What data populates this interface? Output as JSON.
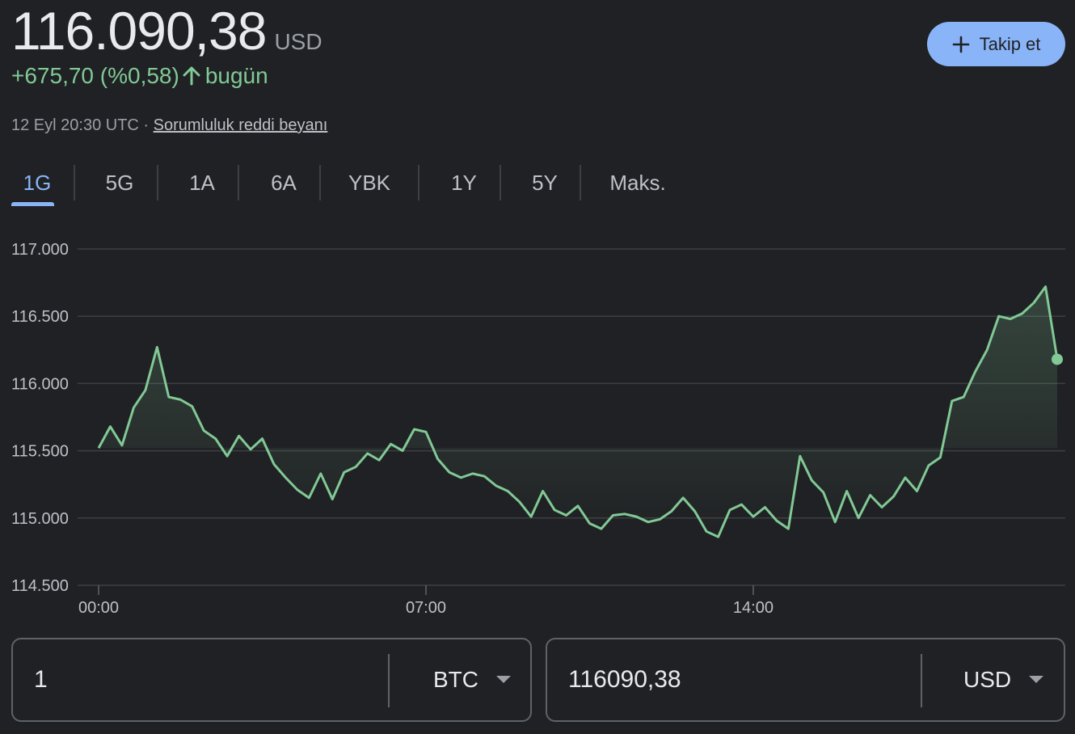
{
  "quote": {
    "price": "116.090,38",
    "currency": "USD",
    "change": "+675,70 (%0,58)",
    "change_period": "bugün",
    "timestamp": "12 Eyl 20:30 UTC · ",
    "disclaimer": "Sorumluluk reddi beyanı"
  },
  "follow_button": {
    "label": "Takip et",
    "icon": "plus-icon"
  },
  "tabs": [
    {
      "label": "1G",
      "active": true
    },
    {
      "label": "5G",
      "active": false
    },
    {
      "label": "1A",
      "active": false
    },
    {
      "label": "6A",
      "active": false
    },
    {
      "label": "YBK",
      "active": false
    },
    {
      "label": "1Y",
      "active": false
    },
    {
      "label": "5Y",
      "active": false
    },
    {
      "label": "Maks.",
      "active": false
    }
  ],
  "colors": {
    "accent": "#8ab4f8",
    "positive": "#81c995",
    "background": "#202124",
    "gridline": "#3c4043"
  },
  "chart_data": {
    "type": "line",
    "series": [
      {
        "x": [
          "00:00",
          "00:15",
          "00:30",
          "00:45",
          "01:00",
          "01:15",
          "01:30",
          "01:45",
          "02:00",
          "02:15",
          "02:30",
          "02:45",
          "03:00",
          "03:15",
          "03:30",
          "03:45",
          "04:00",
          "04:15",
          "04:30",
          "04:45",
          "05:00",
          "05:15",
          "05:30",
          "05:45",
          "06:00",
          "06:15",
          "06:30",
          "06:45",
          "07:00",
          "07:15",
          "07:30",
          "07:45",
          "08:00",
          "08:15",
          "08:30",
          "08:45",
          "09:00",
          "09:15",
          "09:30",
          "09:45",
          "10:00",
          "10:15",
          "10:30",
          "10:45",
          "11:00",
          "11:15",
          "11:30",
          "11:45",
          "12:00",
          "12:15",
          "12:30",
          "12:45",
          "13:00",
          "13:15",
          "13:30",
          "13:45",
          "14:00",
          "14:15",
          "14:30",
          "14:45",
          "15:00",
          "15:15",
          "15:30",
          "15:45",
          "16:00",
          "16:15",
          "16:30",
          "16:45",
          "17:00",
          "17:15",
          "17:30",
          "17:45",
          "18:00",
          "18:15",
          "18:30",
          "18:45",
          "19:00",
          "19:15",
          "19:30",
          "19:45",
          "20:00",
          "20:15",
          "20:30"
        ],
        "values": [
          115520,
          115680,
          115540,
          115820,
          115950,
          116270,
          115900,
          115880,
          115830,
          115650,
          115590,
          115460,
          115610,
          115510,
          115590,
          115400,
          115300,
          115210,
          115150,
          115330,
          115140,
          115340,
          115380,
          115480,
          115430,
          115550,
          115500,
          115660,
          115640,
          115440,
          115340,
          115300,
          115330,
          115310,
          115240,
          115200,
          115120,
          115010,
          115200,
          115060,
          115020,
          115090,
          114960,
          114920,
          115020,
          115030,
          115010,
          114970,
          114990,
          115050,
          115150,
          115050,
          114900,
          114860,
          115060,
          115100,
          115010,
          115080,
          114980,
          114920,
          115460,
          115280,
          115190,
          114970,
          115200,
          115000,
          115170,
          115080,
          115160,
          115300,
          115200,
          115390,
          115450,
          115870,
          115900,
          116090,
          116250,
          116500,
          116480,
          116520,
          116600,
          116720,
          116180
        ]
      }
    ],
    "y_ticks": [
      "117.000",
      "116.500",
      "116.000",
      "115.500",
      "115.000",
      "114.500"
    ],
    "x_ticks": [
      "00:00",
      "07:00",
      "14:00"
    ],
    "ylim": [
      114500,
      117000
    ],
    "xlim_hours": [
      0,
      20.5
    ],
    "grid": true,
    "line_color": "#81c995",
    "last_point_marker": true
  },
  "converter": {
    "left": {
      "value": "1",
      "unit": "BTC"
    },
    "right": {
      "value": "116090,38",
      "unit": "USD"
    }
  }
}
